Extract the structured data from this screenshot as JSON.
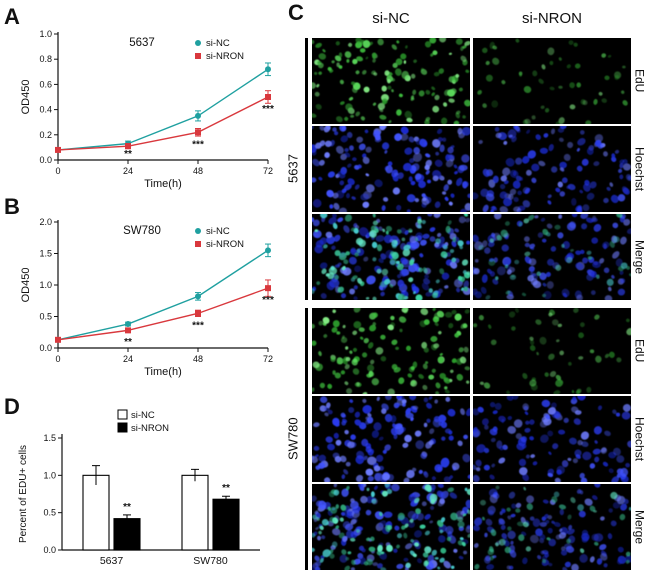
{
  "panels": {
    "A": "A",
    "B": "B",
    "C": "C",
    "D": "D"
  },
  "colors": {
    "si_nc": "#1fa0a0",
    "si_nron": "#d9383d",
    "axis": "#111111",
    "micro_bg": "#000000"
  },
  "chart_data": [
    {
      "panel": "A",
      "type": "line",
      "title": "5637",
      "xlabel": "Time(h)",
      "ylabel": "OD450",
      "x": [
        0,
        24,
        48,
        72
      ],
      "ylim": [
        0,
        1.0
      ],
      "yticks": [
        0,
        0.2,
        0.4,
        0.6,
        0.8,
        1.0
      ],
      "grid": false,
      "legend_position": "top-right",
      "series": [
        {
          "name": "si-NC",
          "color": "#1fa0a0",
          "marker": "circle",
          "values": [
            0.08,
            0.13,
            0.35,
            0.72
          ],
          "err": [
            0.01,
            0.02,
            0.04,
            0.05
          ]
        },
        {
          "name": "si-NRON",
          "color": "#d9383d",
          "marker": "square",
          "values": [
            0.08,
            0.11,
            0.22,
            0.5
          ],
          "err": [
            0.01,
            0.02,
            0.03,
            0.05
          ]
        }
      ],
      "annotations": [
        {
          "x": 24,
          "text": "**"
        },
        {
          "x": 48,
          "text": "***"
        },
        {
          "x": 72,
          "text": "***"
        }
      ]
    },
    {
      "panel": "B",
      "type": "line",
      "title": "SW780",
      "xlabel": "Time(h)",
      "ylabel": "OD450",
      "x": [
        0,
        24,
        48,
        72
      ],
      "ylim": [
        0,
        2.0
      ],
      "yticks": [
        0,
        0.5,
        1.0,
        1.5,
        2.0
      ],
      "grid": false,
      "legend_position": "top-right",
      "series": [
        {
          "name": "si-NC",
          "color": "#1fa0a0",
          "marker": "circle",
          "values": [
            0.13,
            0.38,
            0.82,
            1.55
          ],
          "err": [
            0.02,
            0.03,
            0.06,
            0.1
          ]
        },
        {
          "name": "si-NRON",
          "color": "#d9383d",
          "marker": "square",
          "values": [
            0.13,
            0.28,
            0.55,
            0.95
          ],
          "err": [
            0.02,
            0.03,
            0.05,
            0.13
          ]
        }
      ],
      "annotations": [
        {
          "x": 24,
          "text": "**"
        },
        {
          "x": 48,
          "text": "***"
        },
        {
          "x": 72,
          "text": "***"
        }
      ]
    },
    {
      "panel": "D",
      "type": "bar",
      "ylabel": "Percent of EDU+ cells",
      "categories": [
        "5637",
        "SW780"
      ],
      "ylim": [
        0,
        1.5
      ],
      "yticks": [
        0,
        0.5,
        1.0,
        1.5
      ],
      "legend_position": "top",
      "series": [
        {
          "name": "si-NC",
          "fill": "#ffffff",
          "values": [
            1.0,
            1.0
          ],
          "err": [
            0.13,
            0.08
          ]
        },
        {
          "name": "si-NRON",
          "fill": "#000000",
          "values": [
            0.42,
            0.68
          ],
          "err": [
            0.05,
            0.04
          ]
        }
      ],
      "annotations": [
        {
          "category": "5637",
          "series": "si-NRON",
          "text": "**"
        },
        {
          "category": "SW780",
          "series": "si-NRON",
          "text": "**"
        }
      ]
    }
  ],
  "panel_c": {
    "columns": [
      "si-NC",
      "si-NRON"
    ],
    "groups": [
      {
        "name": "5637",
        "rows": [
          "EdU",
          "Hoechst",
          "Merge"
        ]
      },
      {
        "name": "SW780",
        "rows": [
          "EdU",
          "Hoechst",
          "Merge"
        ]
      }
    ],
    "stain_shades": {
      "edu_green": [
        "#2c9a2c",
        "#3fbf3f",
        "#5ad85a",
        "#86ef86"
      ],
      "hoechst_blue": [
        "#1b2bd0",
        "#2a3cee",
        "#4254ff",
        "#6e7cff"
      ],
      "merge_teal": [
        "#2fae7e",
        "#3ed3a2",
        "#63e6c1",
        "#49cfd2"
      ]
    }
  }
}
